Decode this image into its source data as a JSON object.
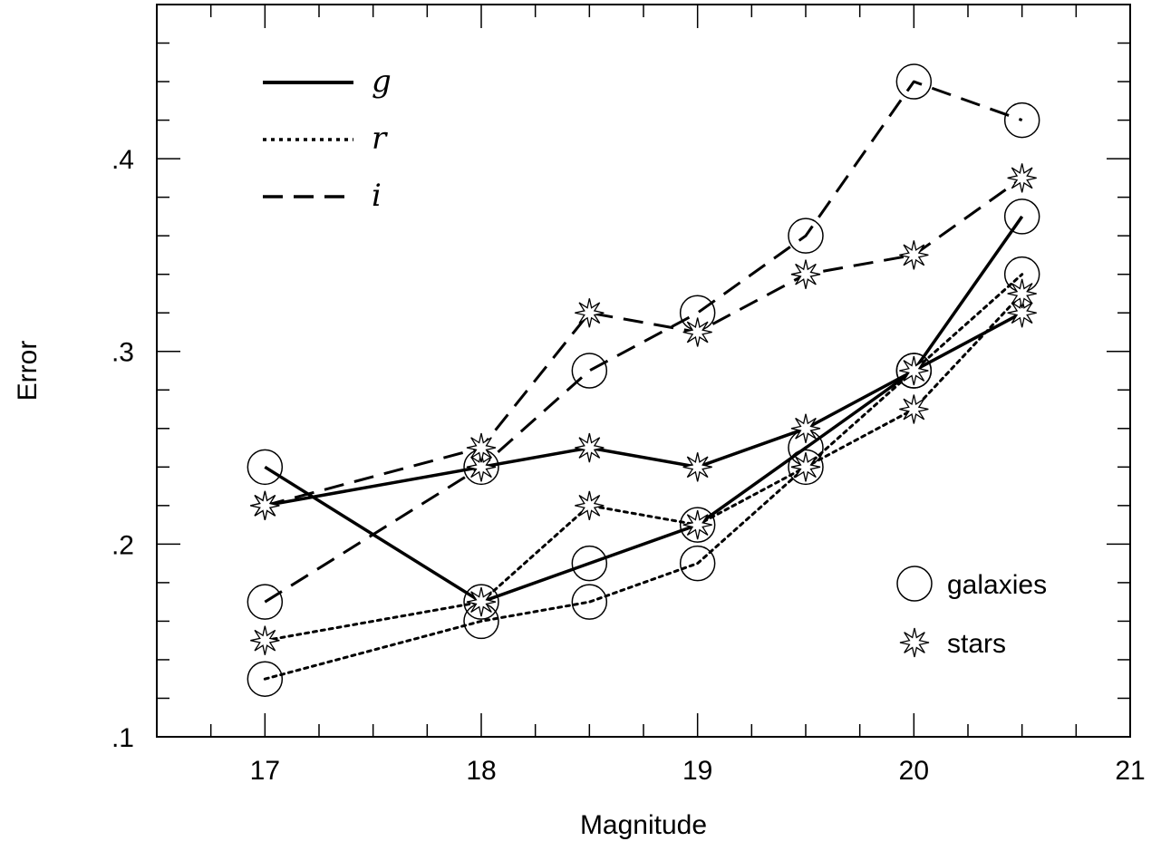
{
  "chart_data": {
    "type": "line",
    "title": "",
    "xlabel": "Magnitude",
    "ylabel": "Error",
    "xlim": [
      16.5,
      21
    ],
    "ylim": [
      0.1,
      0.48
    ],
    "x_ticks": [
      17,
      18,
      19,
      20,
      21
    ],
    "x_tick_labels": [
      "17",
      "18",
      "19",
      "20",
      "21"
    ],
    "y_ticks": [
      0.1,
      0.2,
      0.3,
      0.4
    ],
    "y_tick_labels": [
      ".1",
      ".2",
      ".3",
      ".4"
    ],
    "x_minor_step": 0.25,
    "y_minor_step": 0.02,
    "grid": false,
    "legend_bands": {
      "placement": "top-left",
      "entries": [
        {
          "label": "g",
          "style": "solid"
        },
        {
          "label": "r",
          "style": "dotted"
        },
        {
          "label": "i",
          "style": "dashed"
        }
      ]
    },
    "legend_markers": {
      "placement": "bottom-right",
      "entries": [
        {
          "label": "galaxies",
          "marker": "circle"
        },
        {
          "label": "stars",
          "marker": "star"
        }
      ]
    },
    "series": [
      {
        "band": "g",
        "type": "galaxies",
        "style": "solid",
        "marker": "circle",
        "x": [
          17,
          18,
          18.5,
          19,
          19.5,
          20,
          20.5
        ],
        "y": [
          0.24,
          0.17,
          0.19,
          0.21,
          0.25,
          0.29,
          0.37
        ]
      },
      {
        "band": "g",
        "type": "stars",
        "style": "solid",
        "marker": "star",
        "x": [
          17,
          18,
          18.5,
          19,
          19.5,
          20,
          20.5
        ],
        "y": [
          0.22,
          0.24,
          0.25,
          0.24,
          0.26,
          0.29,
          0.32
        ]
      },
      {
        "band": "r",
        "type": "galaxies",
        "style": "dotted",
        "marker": "circle",
        "x": [
          17,
          18,
          18.5,
          19,
          19.5,
          20,
          20.5
        ],
        "y": [
          0.13,
          0.16,
          0.17,
          0.19,
          0.24,
          0.29,
          0.34
        ]
      },
      {
        "band": "r",
        "type": "stars",
        "style": "dotted",
        "marker": "star",
        "x": [
          17,
          18,
          18.5,
          19,
          19.5,
          20,
          20.5
        ],
        "y": [
          0.15,
          0.17,
          0.22,
          0.21,
          0.24,
          0.27,
          0.33
        ]
      },
      {
        "band": "i",
        "type": "galaxies",
        "style": "dashed",
        "marker": "circle",
        "x": [
          17,
          18,
          18.5,
          19,
          19.5,
          20,
          20.5
        ],
        "y": [
          0.17,
          0.24,
          0.29,
          0.32,
          0.36,
          0.44,
          0.42
        ]
      },
      {
        "band": "i",
        "type": "stars",
        "style": "dashed",
        "marker": "star",
        "x": [
          17,
          18,
          18.5,
          19,
          19.5,
          20,
          20.5
        ],
        "y": [
          0.22,
          0.25,
          0.32,
          0.31,
          0.34,
          0.35,
          0.39
        ]
      }
    ]
  }
}
